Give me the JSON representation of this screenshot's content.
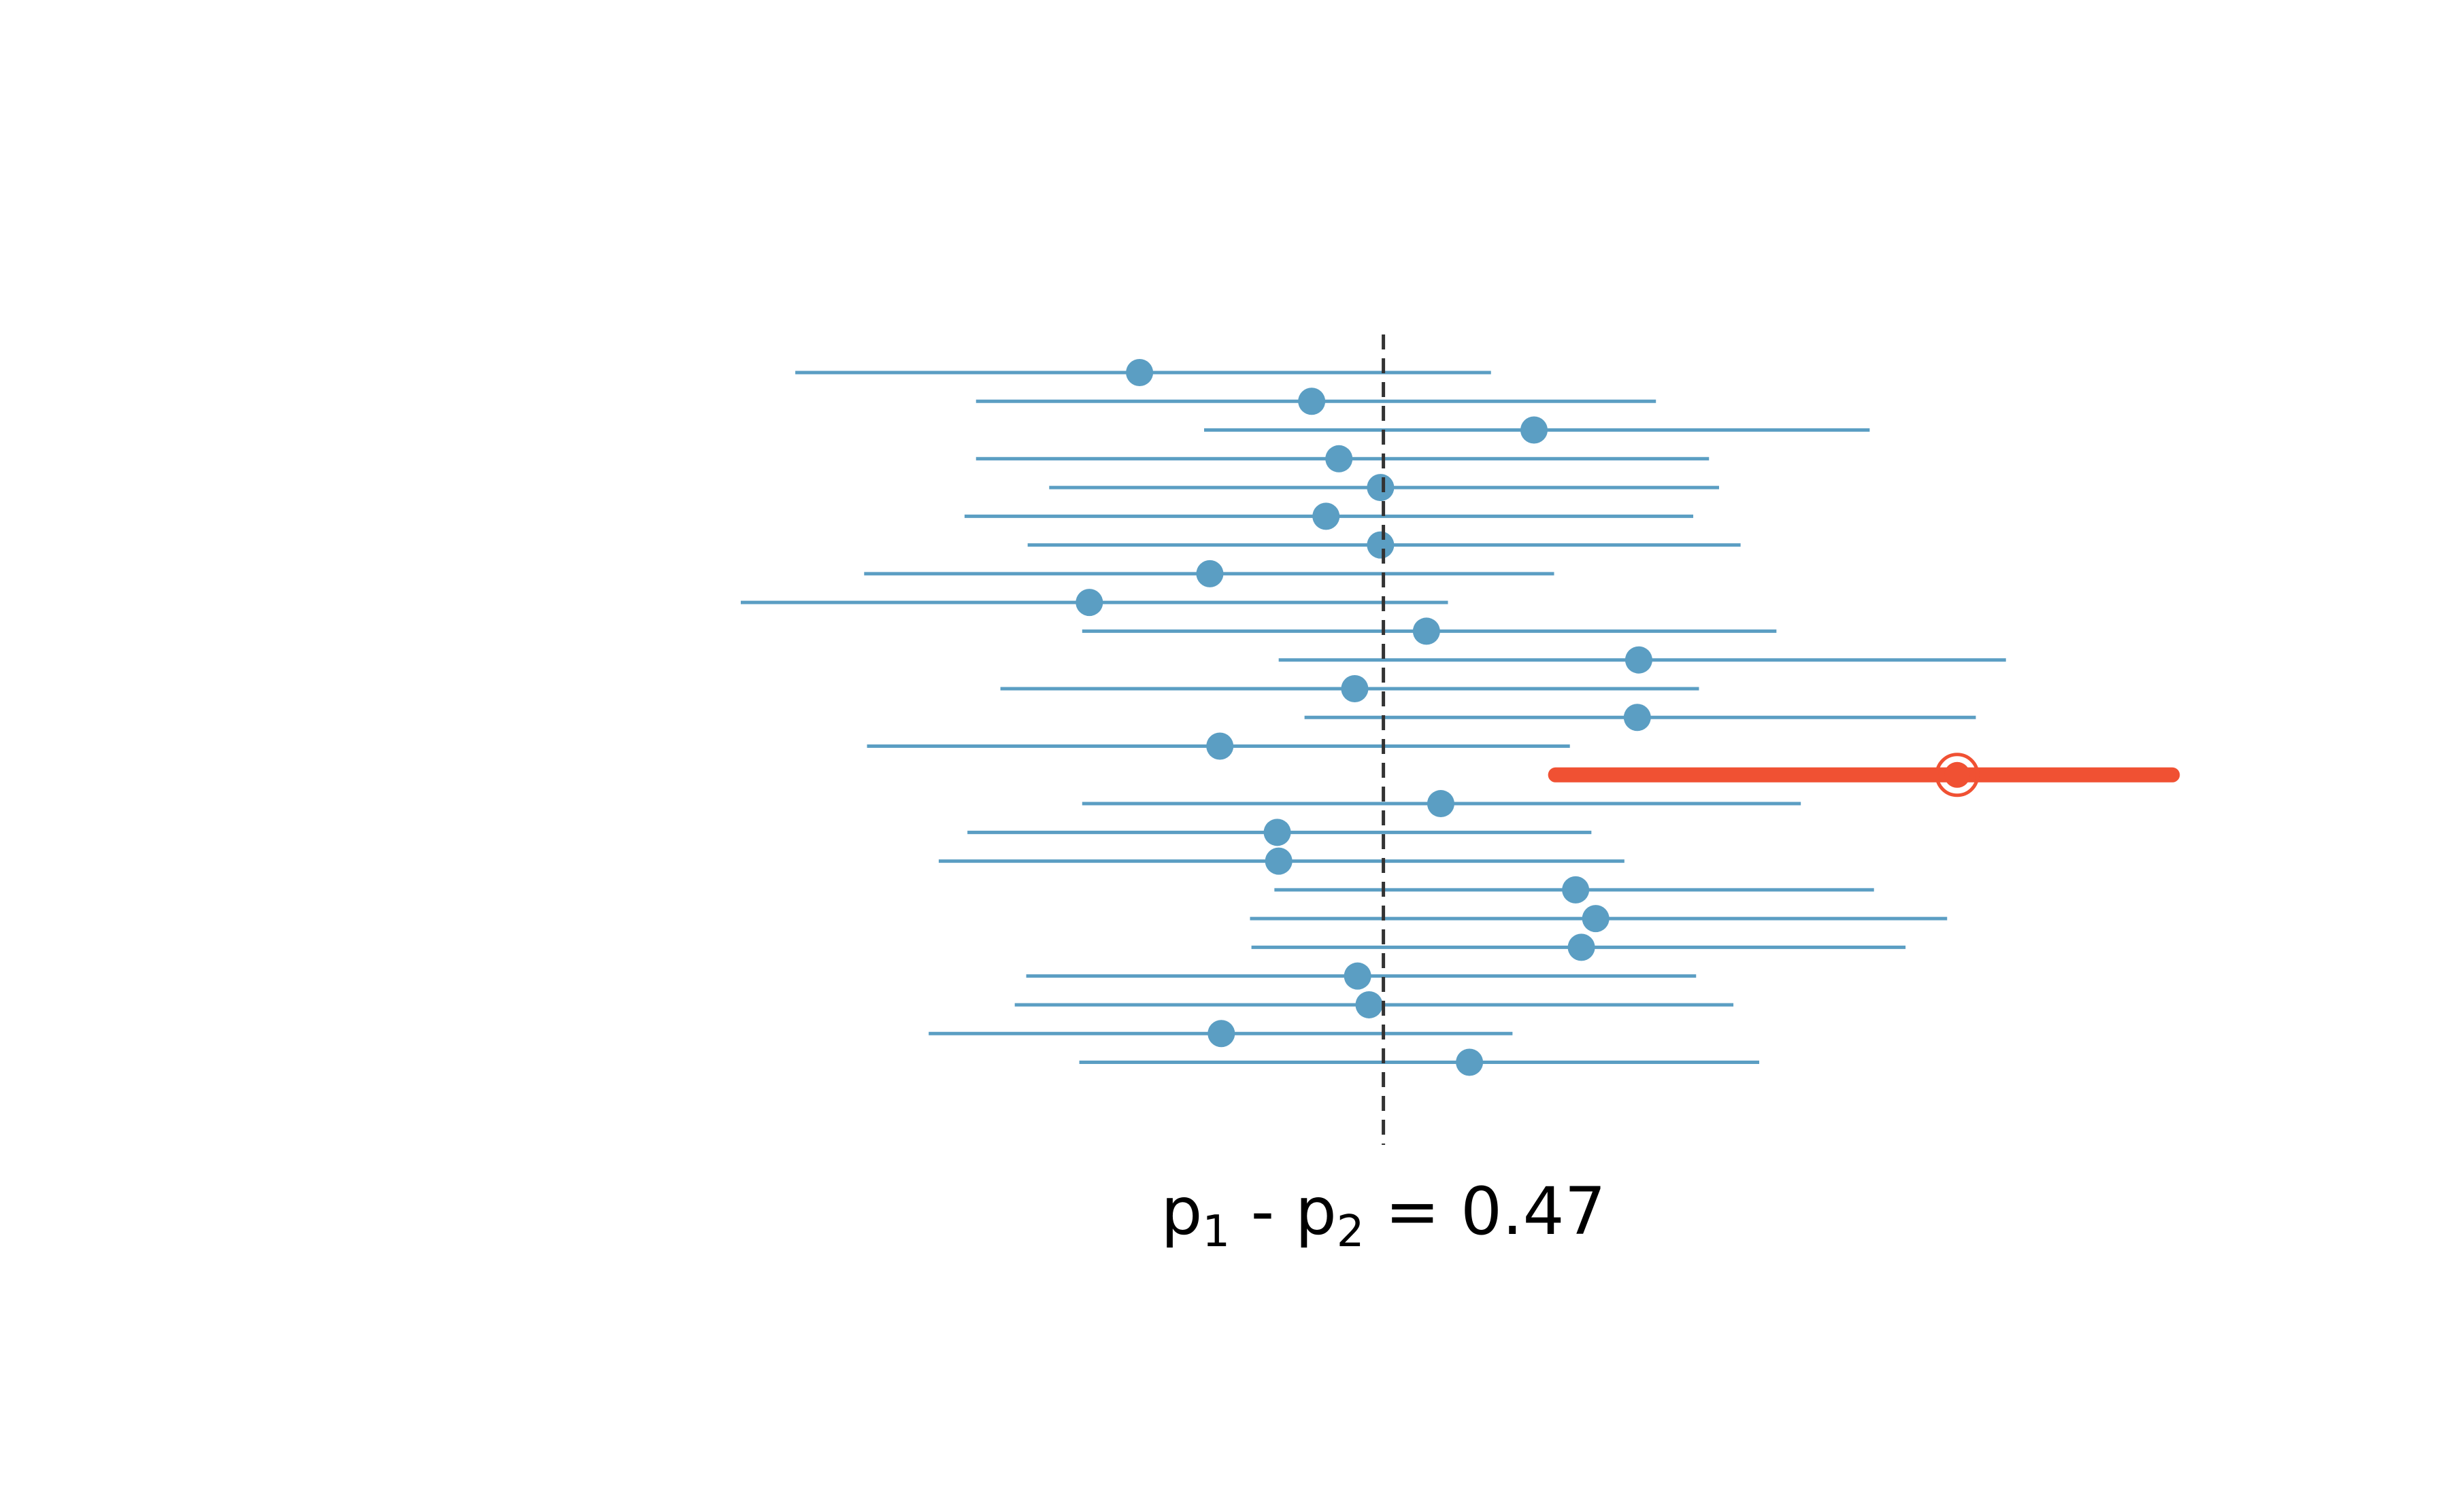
{
  "chart_data": {
    "type": "interval",
    "title": "",
    "xlabel": "",
    "ylabel": "",
    "reference": {
      "value": 0.47,
      "label": {
        "p": "p",
        "sub1": "1",
        "minus": " - ",
        "sub2": "2",
        "eq": " = 0.47"
      }
    },
    "xlim": [
      -0.18,
      1.1
    ],
    "intervals": [
      {
        "estimate": 0.3,
        "lower": 0.06,
        "upper": 0.545
      },
      {
        "estimate": 0.42,
        "lower": 0.186,
        "upper": 0.66
      },
      {
        "estimate": 0.575,
        "lower": 0.345,
        "upper": 0.809
      },
      {
        "estimate": 0.439,
        "lower": 0.186,
        "upper": 0.697
      },
      {
        "estimate": 0.468,
        "lower": 0.237,
        "upper": 0.704
      },
      {
        "estimate": 0.43,
        "lower": 0.178,
        "upper": 0.686
      },
      {
        "estimate": 0.468,
        "lower": 0.222,
        "upper": 0.719
      },
      {
        "estimate": 0.349,
        "lower": 0.108,
        "upper": 0.589
      },
      {
        "estimate": 0.265,
        "lower": 0.022,
        "upper": 0.515
      },
      {
        "estimate": 0.5,
        "lower": 0.26,
        "upper": 0.744
      },
      {
        "estimate": 0.648,
        "lower": 0.397,
        "upper": 0.904
      },
      {
        "estimate": 0.45,
        "lower": 0.203,
        "upper": 0.69
      },
      {
        "estimate": 0.647,
        "lower": 0.415,
        "upper": 0.883
      },
      {
        "estimate": 0.356,
        "lower": 0.11,
        "upper": 0.6
      },
      {
        "estimate": 0.87,
        "lower": 0.59,
        "upper": 1.02,
        "highlight": true
      },
      {
        "estimate": 0.51,
        "lower": 0.26,
        "upper": 0.761
      },
      {
        "estimate": 0.396,
        "lower": 0.18,
        "upper": 0.615
      },
      {
        "estimate": 0.397,
        "lower": 0.16,
        "upper": 0.638
      },
      {
        "estimate": 0.604,
        "lower": 0.394,
        "upper": 0.812
      },
      {
        "estimate": 0.618,
        "lower": 0.377,
        "upper": 0.863
      },
      {
        "estimate": 0.608,
        "lower": 0.378,
        "upper": 0.834
      },
      {
        "estimate": 0.452,
        "lower": 0.221,
        "upper": 0.688
      },
      {
        "estimate": 0.46,
        "lower": 0.213,
        "upper": 0.714
      },
      {
        "estimate": 0.357,
        "lower": 0.153,
        "upper": 0.56
      },
      {
        "estimate": 0.53,
        "lower": 0.258,
        "upper": 0.732
      }
    ]
  }
}
